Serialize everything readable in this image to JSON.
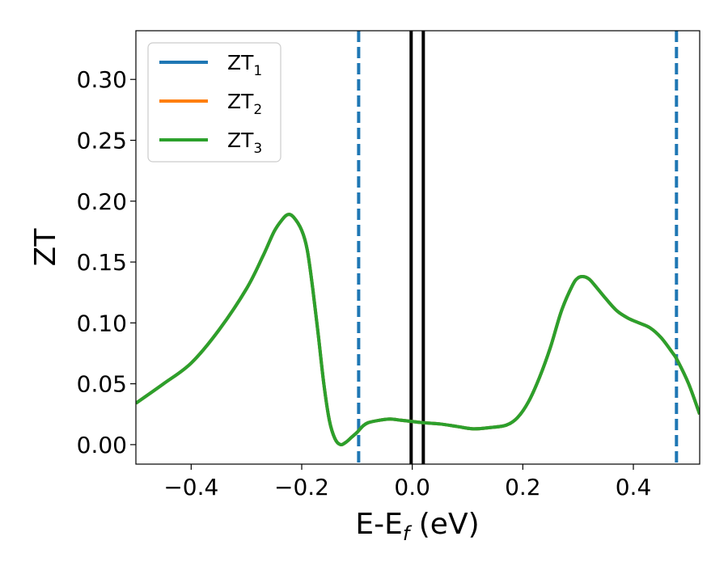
{
  "chart_data": {
    "type": "line",
    "title": "",
    "xlabel": {
      "main": "E-E",
      "sub": "f",
      "tail": " (eV)"
    },
    "ylabel": "ZT",
    "xlim": [
      -0.5,
      0.52
    ],
    "ylim": [
      -0.016,
      0.34
    ],
    "x_ticks": [
      -0.4,
      -0.2,
      0.0,
      0.2,
      0.4
    ],
    "x_tick_labels": [
      "−0.4",
      "−0.2",
      "0.0",
      "0.2",
      "0.4"
    ],
    "y_ticks": [
      0.0,
      0.05,
      0.1,
      0.15,
      0.2,
      0.25,
      0.3
    ],
    "y_tick_labels": [
      "0.00",
      "0.05",
      "0.10",
      "0.15",
      "0.20",
      "0.25",
      "0.30"
    ],
    "grid": false,
    "legend_position": "top-left",
    "series": [
      {
        "name": "ZT",
        "sub": "1",
        "color": "#1f77b4",
        "x": [
          -0.5,
          -0.45,
          -0.4,
          -0.35,
          -0.3,
          -0.27,
          -0.25,
          -0.235,
          -0.225,
          -0.215,
          -0.2,
          -0.19,
          -0.18,
          -0.17,
          -0.16,
          -0.15,
          -0.14,
          -0.13,
          -0.12,
          -0.11,
          -0.1,
          -0.09,
          -0.08,
          -0.06,
          -0.04,
          -0.02,
          0.0,
          0.02,
          0.05,
          0.08,
          0.11,
          0.14,
          0.17,
          0.19,
          0.21,
          0.23,
          0.25,
          0.27,
          0.29,
          0.3,
          0.31,
          0.32,
          0.33,
          0.35,
          0.37,
          0.39,
          0.41,
          0.43,
          0.45,
          0.47,
          0.48,
          0.5,
          0.52
        ],
        "y": [
          0.034,
          0.05,
          0.067,
          0.094,
          0.128,
          0.155,
          0.175,
          0.185,
          0.189,
          0.187,
          0.176,
          0.16,
          0.128,
          0.09,
          0.05,
          0.02,
          0.005,
          0.0,
          0.002,
          0.006,
          0.01,
          0.015,
          0.018,
          0.02,
          0.021,
          0.02,
          0.019,
          0.018,
          0.017,
          0.015,
          0.013,
          0.014,
          0.016,
          0.022,
          0.035,
          0.055,
          0.08,
          0.11,
          0.131,
          0.137,
          0.138,
          0.136,
          0.131,
          0.12,
          0.11,
          0.104,
          0.1,
          0.096,
          0.088,
          0.076,
          0.069,
          0.05,
          0.025
        ]
      },
      {
        "name": "ZT",
        "sub": "2",
        "color": "#ff7f0e",
        "x": [
          -0.5,
          -0.45,
          -0.4,
          -0.35,
          -0.3,
          -0.27,
          -0.25,
          -0.235,
          -0.225,
          -0.215,
          -0.2,
          -0.19,
          -0.18,
          -0.17,
          -0.16,
          -0.15,
          -0.14,
          -0.13,
          -0.12,
          -0.11,
          -0.1,
          -0.09,
          -0.08,
          -0.06,
          -0.04,
          -0.02,
          0.0,
          0.02,
          0.05,
          0.08,
          0.11,
          0.14,
          0.17,
          0.19,
          0.21,
          0.23,
          0.25,
          0.27,
          0.29,
          0.3,
          0.31,
          0.32,
          0.33,
          0.35,
          0.37,
          0.39,
          0.41,
          0.43,
          0.45,
          0.47,
          0.48,
          0.5,
          0.52
        ],
        "y": [
          0.034,
          0.05,
          0.067,
          0.094,
          0.128,
          0.155,
          0.175,
          0.185,
          0.189,
          0.187,
          0.176,
          0.16,
          0.128,
          0.09,
          0.05,
          0.02,
          0.005,
          0.0,
          0.002,
          0.006,
          0.01,
          0.015,
          0.018,
          0.02,
          0.021,
          0.02,
          0.019,
          0.018,
          0.017,
          0.015,
          0.013,
          0.014,
          0.016,
          0.022,
          0.035,
          0.055,
          0.08,
          0.11,
          0.131,
          0.137,
          0.138,
          0.136,
          0.131,
          0.12,
          0.11,
          0.104,
          0.1,
          0.096,
          0.088,
          0.076,
          0.069,
          0.05,
          0.025
        ]
      },
      {
        "name": "ZT",
        "sub": "3",
        "color": "#2ca02c",
        "x": [
          -0.5,
          -0.45,
          -0.4,
          -0.35,
          -0.3,
          -0.27,
          -0.25,
          -0.235,
          -0.225,
          -0.215,
          -0.2,
          -0.19,
          -0.18,
          -0.17,
          -0.16,
          -0.15,
          -0.14,
          -0.13,
          -0.12,
          -0.11,
          -0.1,
          -0.09,
          -0.08,
          -0.06,
          -0.04,
          -0.02,
          0.0,
          0.02,
          0.05,
          0.08,
          0.11,
          0.14,
          0.17,
          0.19,
          0.21,
          0.23,
          0.25,
          0.27,
          0.29,
          0.3,
          0.31,
          0.32,
          0.33,
          0.35,
          0.37,
          0.39,
          0.41,
          0.43,
          0.45,
          0.47,
          0.48,
          0.5,
          0.52
        ],
        "y": [
          0.034,
          0.05,
          0.067,
          0.094,
          0.128,
          0.155,
          0.175,
          0.185,
          0.189,
          0.187,
          0.176,
          0.16,
          0.128,
          0.09,
          0.05,
          0.02,
          0.005,
          0.0,
          0.002,
          0.006,
          0.01,
          0.015,
          0.018,
          0.02,
          0.021,
          0.02,
          0.019,
          0.018,
          0.017,
          0.015,
          0.013,
          0.014,
          0.016,
          0.022,
          0.035,
          0.055,
          0.08,
          0.11,
          0.131,
          0.137,
          0.138,
          0.136,
          0.131,
          0.12,
          0.11,
          0.104,
          0.1,
          0.096,
          0.088,
          0.076,
          0.069,
          0.05,
          0.025
        ]
      }
    ],
    "vertical_lines": [
      {
        "x": -0.097,
        "style": "dashed",
        "color": "#1f77b4"
      },
      {
        "x": 0.478,
        "style": "dashed",
        "color": "#1f77b4"
      },
      {
        "x": -0.002,
        "style": "solid",
        "color": "#000000"
      },
      {
        "x": 0.02,
        "style": "solid",
        "color": "#000000"
      }
    ]
  }
}
